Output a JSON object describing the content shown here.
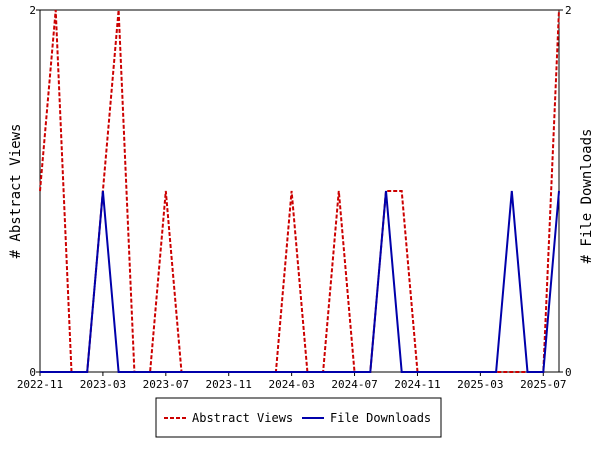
{
  "chart_data": {
    "type": "line",
    "x": [
      "2022-11",
      "2022-12",
      "2023-01",
      "2023-02",
      "2023-03",
      "2023-04",
      "2023-05",
      "2023-06",
      "2023-07",
      "2023-08",
      "2023-09",
      "2023-10",
      "2023-11",
      "2023-12",
      "2024-01",
      "2024-02",
      "2024-03",
      "2024-04",
      "2024-05",
      "2024-06",
      "2024-07",
      "2024-08",
      "2024-09",
      "2024-10",
      "2024-11",
      "2024-12",
      "2025-01",
      "2025-02",
      "2025-03",
      "2025-04",
      "2025-05",
      "2025-06",
      "2025-07",
      "2025-08"
    ],
    "xticks": [
      "2022-11",
      "2023-03",
      "2023-07",
      "2023-11",
      "2024-03",
      "2024-07",
      "2024-11",
      "2025-03",
      "2025-07"
    ],
    "series": [
      {
        "name": "Abstract Views",
        "axis": "left",
        "color": "#cc0000",
        "dash": true,
        "values": [
          1,
          2,
          0,
          0,
          1,
          2,
          0,
          0,
          1,
          0,
          0,
          0,
          0,
          0,
          0,
          0,
          1,
          0,
          0,
          1,
          0,
          0,
          1,
          1,
          0,
          0,
          0,
          0,
          0,
          0,
          0,
          0,
          0,
          2
        ]
      },
      {
        "name": "File Downloads",
        "axis": "right",
        "color": "#0000aa",
        "dash": false,
        "values": [
          0,
          0,
          0,
          0,
          1,
          0,
          0,
          0,
          0,
          0,
          0,
          0,
          0,
          0,
          0,
          0,
          0,
          0,
          0,
          0,
          0,
          0,
          1,
          0,
          0,
          0,
          0,
          0,
          0,
          0,
          1,
          0,
          0,
          1
        ]
      }
    ],
    "ylabel": "# Abstract Views",
    "y2label": "# File Downloads",
    "ylim": [
      0,
      2
    ],
    "y2lim": [
      0,
      2
    ],
    "yticks": [
      "0",
      "2"
    ],
    "y2ticks": [
      "0",
      "2"
    ],
    "grid": false,
    "legend": "bottom"
  }
}
